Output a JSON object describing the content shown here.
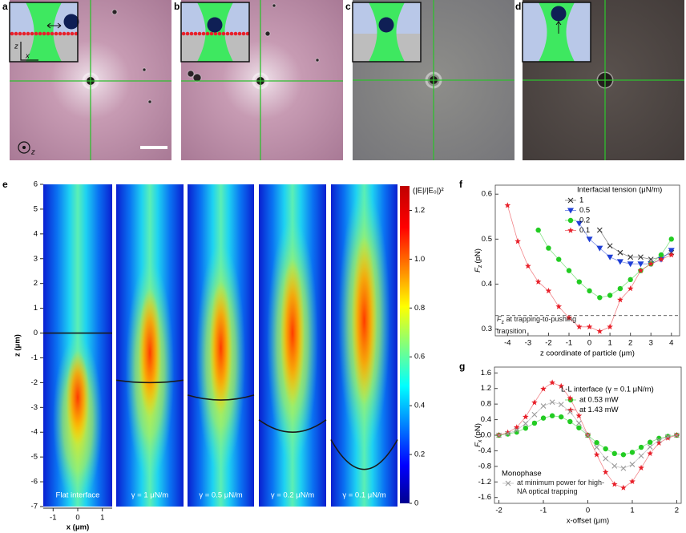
{
  "panels": [
    {
      "label": "a",
      "axis_labels": [
        "z",
        "x"
      ],
      "view_axis": "z"
    },
    {
      "label": "b"
    },
    {
      "label": "c"
    },
    {
      "label": "d"
    }
  ],
  "chart_data": [
    {
      "type": "heatmap",
      "panel_label": "e",
      "categories": [
        "Flat interface",
        "γ = 1 μN/m",
        "γ = 0.5 μN/m",
        "γ = 0.2 μN/m",
        "γ = 0.1 μN/m"
      ],
      "interface_z_center": [
        0,
        -2,
        -2.7,
        -4,
        -5.5
      ],
      "interface_z_edge": [
        0,
        -1.9,
        -2.5,
        -3.5,
        -4.3
      ],
      "ylim": [
        -7,
        6
      ],
      "yticks": [
        -7,
        -6,
        -5,
        -4,
        -3,
        -2,
        -1,
        0,
        1,
        2,
        3,
        4,
        5,
        6
      ],
      "xlim": [
        -1.4,
        1.4
      ],
      "xticks": [
        -1,
        0,
        1
      ],
      "y_label": "z (μm)",
      "x_label": "x (μm)",
      "colorbar_label": "(|E|/|E₀|)²",
      "clim": [
        0,
        1.3
      ],
      "cticks": [
        0,
        0.2,
        0.4,
        0.6,
        0.8,
        {
          "value": 1,
          "label": "1.0"
        },
        1.2
      ]
    },
    {
      "type": "line",
      "panel_label": "f",
      "legend_title": "Interfacial tension (μN/m)",
      "x_label": "z coordinate of particle (μm)",
      "y_label": {
        "symbol": "F",
        "subscript": "z",
        "unit": "(pN)"
      },
      "annotation": {
        "symbol": "F",
        "subscript": "z",
        "text": "at trapping-to-pushing transition"
      },
      "hline": 0.33,
      "xlim": [
        -4.6,
        4.4
      ],
      "xticks": [
        -4,
        -3,
        -2,
        -1,
        0,
        1,
        2,
        3,
        4
      ],
      "ylim": [
        0.285,
        0.62
      ],
      "yticks": [
        0.3,
        0.4,
        0.5,
        0.6
      ],
      "series": [
        {
          "name": "1",
          "color": "#333333",
          "marker": "x",
          "x": [
            0.5,
            1,
            1.5,
            2,
            2.5,
            3,
            3.5,
            4
          ],
          "values": [
            0.52,
            0.485,
            0.47,
            0.46,
            0.46,
            0.455,
            0.46,
            0.47
          ]
        },
        {
          "name": "0.5",
          "color": "#1f3fd6",
          "marker": "triangle",
          "x": [
            -0.5,
            0,
            0.5,
            1,
            1.5,
            2,
            2.5,
            3,
            3.5,
            4
          ],
          "values": [
            0.535,
            0.5,
            0.48,
            0.46,
            0.45,
            0.445,
            0.445,
            0.445,
            0.455,
            0.475
          ]
        },
        {
          "name": "0.2",
          "color": "#22cc22",
          "marker": "circle",
          "x": [
            -2.5,
            -2,
            -1.5,
            -1,
            -0.5,
            0,
            0.5,
            1,
            1.5,
            2,
            2.5,
            3,
            3.5,
            4
          ],
          "values": [
            0.52,
            0.48,
            0.455,
            0.43,
            0.405,
            0.385,
            0.37,
            0.375,
            0.39,
            0.41,
            0.43,
            0.445,
            0.465,
            0.5
          ]
        },
        {
          "name": "0.1",
          "color": "#e8202a",
          "marker": "star",
          "x": [
            -4,
            -3.5,
            -3,
            -2.5,
            -2,
            -1.5,
            -1,
            -0.5,
            0,
            0.5,
            1,
            1.5,
            2,
            2.5,
            3,
            3.5,
            4
          ],
          "values": [
            0.575,
            0.495,
            0.44,
            0.405,
            0.385,
            0.35,
            0.325,
            0.305,
            0.305,
            0.295,
            0.305,
            0.365,
            0.39,
            0.43,
            0.445,
            0.455,
            0.465
          ]
        }
      ]
    },
    {
      "type": "line",
      "panel_label": "g",
      "legend_title": "L-L interface (γ = 0.1 μN/m)",
      "x_label": "x-offset (μm)",
      "y_label": {
        "symbol": "F",
        "subscript": "x",
        "unit": "(pN)"
      },
      "annotation": "Monophase",
      "xlim": [
        -2.1,
        2.1
      ],
      "xticks": [
        -2,
        -1,
        0,
        1,
        2
      ],
      "ylim": [
        -1.75,
        1.75
      ],
      "yticks": [
        -1.6,
        -1.2,
        -0.8,
        -0.4,
        {
          "value": 0,
          "label": "0.0"
        },
        0.4,
        0.8,
        1.2,
        1.6
      ],
      "x": [
        -2,
        -1.8,
        -1.6,
        -1.4,
        -1.2,
        -1,
        -0.8,
        -0.6,
        -0.4,
        -0.2,
        0,
        0.2,
        0.4,
        0.6,
        0.8,
        1,
        1.2,
        1.4,
        1.6,
        1.8,
        2
      ],
      "series": [
        {
          "name": "at 0.53 mW",
          "color": "#22cc22",
          "marker": "circle",
          "values": [
            0,
            0.03,
            0.08,
            0.18,
            0.31,
            0.44,
            0.5,
            0.47,
            0.35,
            0.19,
            0,
            -0.19,
            -0.35,
            -0.47,
            -0.5,
            -0.44,
            -0.31,
            -0.18,
            -0.08,
            -0.03,
            0
          ]
        },
        {
          "name": "at 1.43 mW",
          "color": "#e8202a",
          "marker": "star",
          "values": [
            0,
            0.07,
            0.2,
            0.47,
            0.84,
            1.19,
            1.35,
            1.26,
            0.95,
            0.5,
            0,
            -0.5,
            -0.95,
            -1.26,
            -1.35,
            -1.19,
            -0.84,
            -0.47,
            -0.2,
            -0.07,
            0
          ]
        },
        {
          "name": "at minimum power for high-NA optical trapping",
          "color": "#9a9a9a",
          "marker": "x",
          "values": [
            0,
            0.04,
            0.13,
            0.3,
            0.53,
            0.75,
            0.85,
            0.79,
            0.6,
            0.31,
            0,
            -0.31,
            -0.6,
            -0.79,
            -0.85,
            -0.75,
            -0.53,
            -0.3,
            -0.13,
            -0.04,
            0
          ]
        }
      ]
    }
  ]
}
